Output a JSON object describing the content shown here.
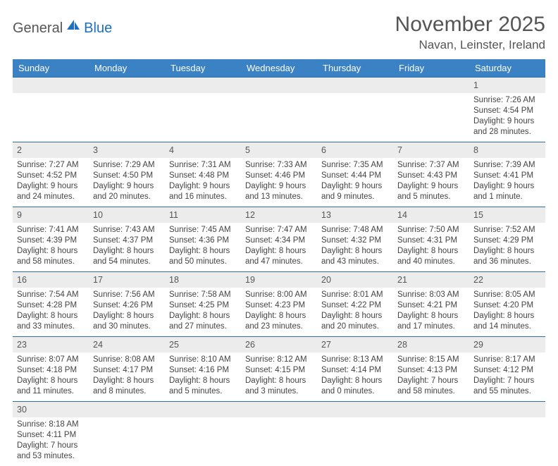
{
  "logo": {
    "text1": "General",
    "text2": "Blue"
  },
  "title": "November 2025",
  "location": "Navan, Leinster, Ireland",
  "colors": {
    "header_bg": "#3b82c4",
    "header_text": "#ffffff",
    "daynum_bg": "#ececec",
    "border": "#2f6fa8",
    "text": "#444444",
    "title_text": "#555555",
    "logo_gray": "#555555",
    "logo_blue": "#1e6fbf"
  },
  "weekdays": [
    "Sunday",
    "Monday",
    "Tuesday",
    "Wednesday",
    "Thursday",
    "Friday",
    "Saturday"
  ],
  "weeks": [
    {
      "nums": [
        "",
        "",
        "",
        "",
        "",
        "",
        "1"
      ],
      "details": [
        "",
        "",
        "",
        "",
        "",
        "",
        "Sunrise: 7:26 AM\nSunset: 4:54 PM\nDaylight: 9 hours and 28 minutes."
      ]
    },
    {
      "nums": [
        "2",
        "3",
        "4",
        "5",
        "6",
        "7",
        "8"
      ],
      "details": [
        "Sunrise: 7:27 AM\nSunset: 4:52 PM\nDaylight: 9 hours and 24 minutes.",
        "Sunrise: 7:29 AM\nSunset: 4:50 PM\nDaylight: 9 hours and 20 minutes.",
        "Sunrise: 7:31 AM\nSunset: 4:48 PM\nDaylight: 9 hours and 16 minutes.",
        "Sunrise: 7:33 AM\nSunset: 4:46 PM\nDaylight: 9 hours and 13 minutes.",
        "Sunrise: 7:35 AM\nSunset: 4:44 PM\nDaylight: 9 hours and 9 minutes.",
        "Sunrise: 7:37 AM\nSunset: 4:43 PM\nDaylight: 9 hours and 5 minutes.",
        "Sunrise: 7:39 AM\nSunset: 4:41 PM\nDaylight: 9 hours and 1 minute."
      ]
    },
    {
      "nums": [
        "9",
        "10",
        "11",
        "12",
        "13",
        "14",
        "15"
      ],
      "details": [
        "Sunrise: 7:41 AM\nSunset: 4:39 PM\nDaylight: 8 hours and 58 minutes.",
        "Sunrise: 7:43 AM\nSunset: 4:37 PM\nDaylight: 8 hours and 54 minutes.",
        "Sunrise: 7:45 AM\nSunset: 4:36 PM\nDaylight: 8 hours and 50 minutes.",
        "Sunrise: 7:47 AM\nSunset: 4:34 PM\nDaylight: 8 hours and 47 minutes.",
        "Sunrise: 7:48 AM\nSunset: 4:32 PM\nDaylight: 8 hours and 43 minutes.",
        "Sunrise: 7:50 AM\nSunset: 4:31 PM\nDaylight: 8 hours and 40 minutes.",
        "Sunrise: 7:52 AM\nSunset: 4:29 PM\nDaylight: 8 hours and 36 minutes."
      ]
    },
    {
      "nums": [
        "16",
        "17",
        "18",
        "19",
        "20",
        "21",
        "22"
      ],
      "details": [
        "Sunrise: 7:54 AM\nSunset: 4:28 PM\nDaylight: 8 hours and 33 minutes.",
        "Sunrise: 7:56 AM\nSunset: 4:26 PM\nDaylight: 8 hours and 30 minutes.",
        "Sunrise: 7:58 AM\nSunset: 4:25 PM\nDaylight: 8 hours and 27 minutes.",
        "Sunrise: 8:00 AM\nSunset: 4:23 PM\nDaylight: 8 hours and 23 minutes.",
        "Sunrise: 8:01 AM\nSunset: 4:22 PM\nDaylight: 8 hours and 20 minutes.",
        "Sunrise: 8:03 AM\nSunset: 4:21 PM\nDaylight: 8 hours and 17 minutes.",
        "Sunrise: 8:05 AM\nSunset: 4:20 PM\nDaylight: 8 hours and 14 minutes."
      ]
    },
    {
      "nums": [
        "23",
        "24",
        "25",
        "26",
        "27",
        "28",
        "29"
      ],
      "details": [
        "Sunrise: 8:07 AM\nSunset: 4:18 PM\nDaylight: 8 hours and 11 minutes.",
        "Sunrise: 8:08 AM\nSunset: 4:17 PM\nDaylight: 8 hours and 8 minutes.",
        "Sunrise: 8:10 AM\nSunset: 4:16 PM\nDaylight: 8 hours and 5 minutes.",
        "Sunrise: 8:12 AM\nSunset: 4:15 PM\nDaylight: 8 hours and 3 minutes.",
        "Sunrise: 8:13 AM\nSunset: 4:14 PM\nDaylight: 8 hours and 0 minutes.",
        "Sunrise: 8:15 AM\nSunset: 4:13 PM\nDaylight: 7 hours and 58 minutes.",
        "Sunrise: 8:17 AM\nSunset: 4:12 PM\nDaylight: 7 hours and 55 minutes."
      ]
    },
    {
      "nums": [
        "30",
        "",
        "",
        "",
        "",
        "",
        ""
      ],
      "details": [
        "Sunrise: 8:18 AM\nSunset: 4:11 PM\nDaylight: 7 hours and 53 minutes.",
        "",
        "",
        "",
        "",
        "",
        ""
      ]
    }
  ]
}
